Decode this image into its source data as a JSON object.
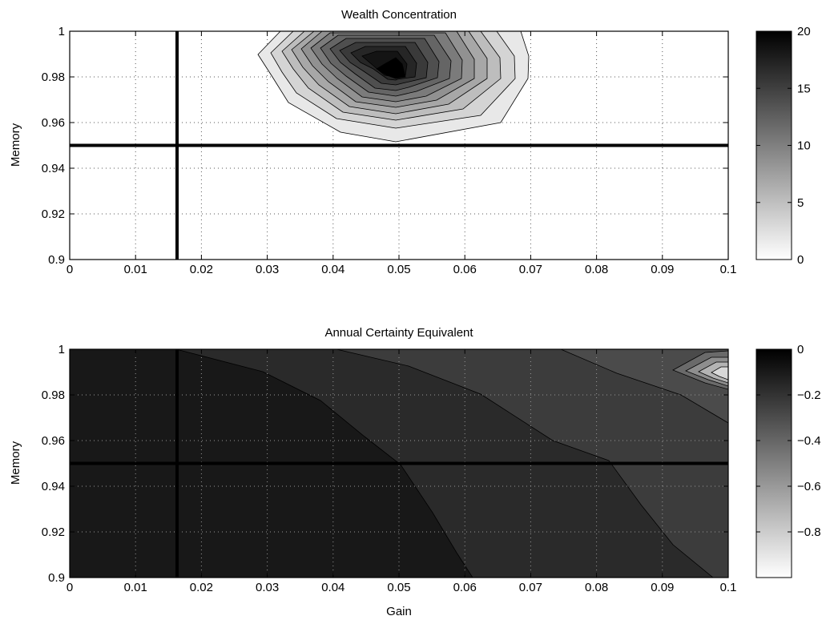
{
  "chart_data": [
    {
      "type": "contour",
      "title": "Wealth Concentration",
      "xlabel": "",
      "ylabel": "Memory",
      "xlim": [
        0,
        0.1
      ],
      "ylim": [
        0.9,
        1.0
      ],
      "xticks": [
        "0",
        "0.01",
        "0.02",
        "0.03",
        "0.04",
        "0.05",
        "0.06",
        "0.07",
        "0.08",
        "0.09",
        "0.1"
      ],
      "yticks": [
        "0.9",
        "0.92",
        "0.94",
        "0.96",
        "0.98",
        "1"
      ],
      "grid": true,
      "colormap": "gray-reversed",
      "colorbar": {
        "min": 0,
        "max": 20,
        "ticks": [
          "0",
          "5",
          "10",
          "15",
          "20"
        ]
      },
      "peak": {
        "x": 0.05,
        "y": 0.98,
        "value": 20
      },
      "reference_lines": {
        "vertical_x": 0.0163,
        "horizontal_y": 0.95
      }
    },
    {
      "type": "contour",
      "title": "Annual Certainty Equivalent",
      "xlabel": "Gain",
      "ylabel": "Memory",
      "xlim": [
        0,
        0.1
      ],
      "ylim": [
        0.9,
        1.0
      ],
      "xticks": [
        "0",
        "0.01",
        "0.02",
        "0.03",
        "0.04",
        "0.05",
        "0.06",
        "0.07",
        "0.08",
        "0.09",
        "0.1"
      ],
      "yticks": [
        "0.9",
        "0.92",
        "0.94",
        "0.96",
        "0.98",
        "1"
      ],
      "grid": true,
      "colormap": "gray-reversed",
      "colorbar": {
        "min": -1,
        "max": 0,
        "ticks": [
          "0",
          "−0.2",
          "−0.4",
          "−0.6",
          "−0.8"
        ]
      },
      "reference_lines": {
        "vertical_x": 0.0163,
        "horizontal_y": 0.95
      }
    }
  ]
}
